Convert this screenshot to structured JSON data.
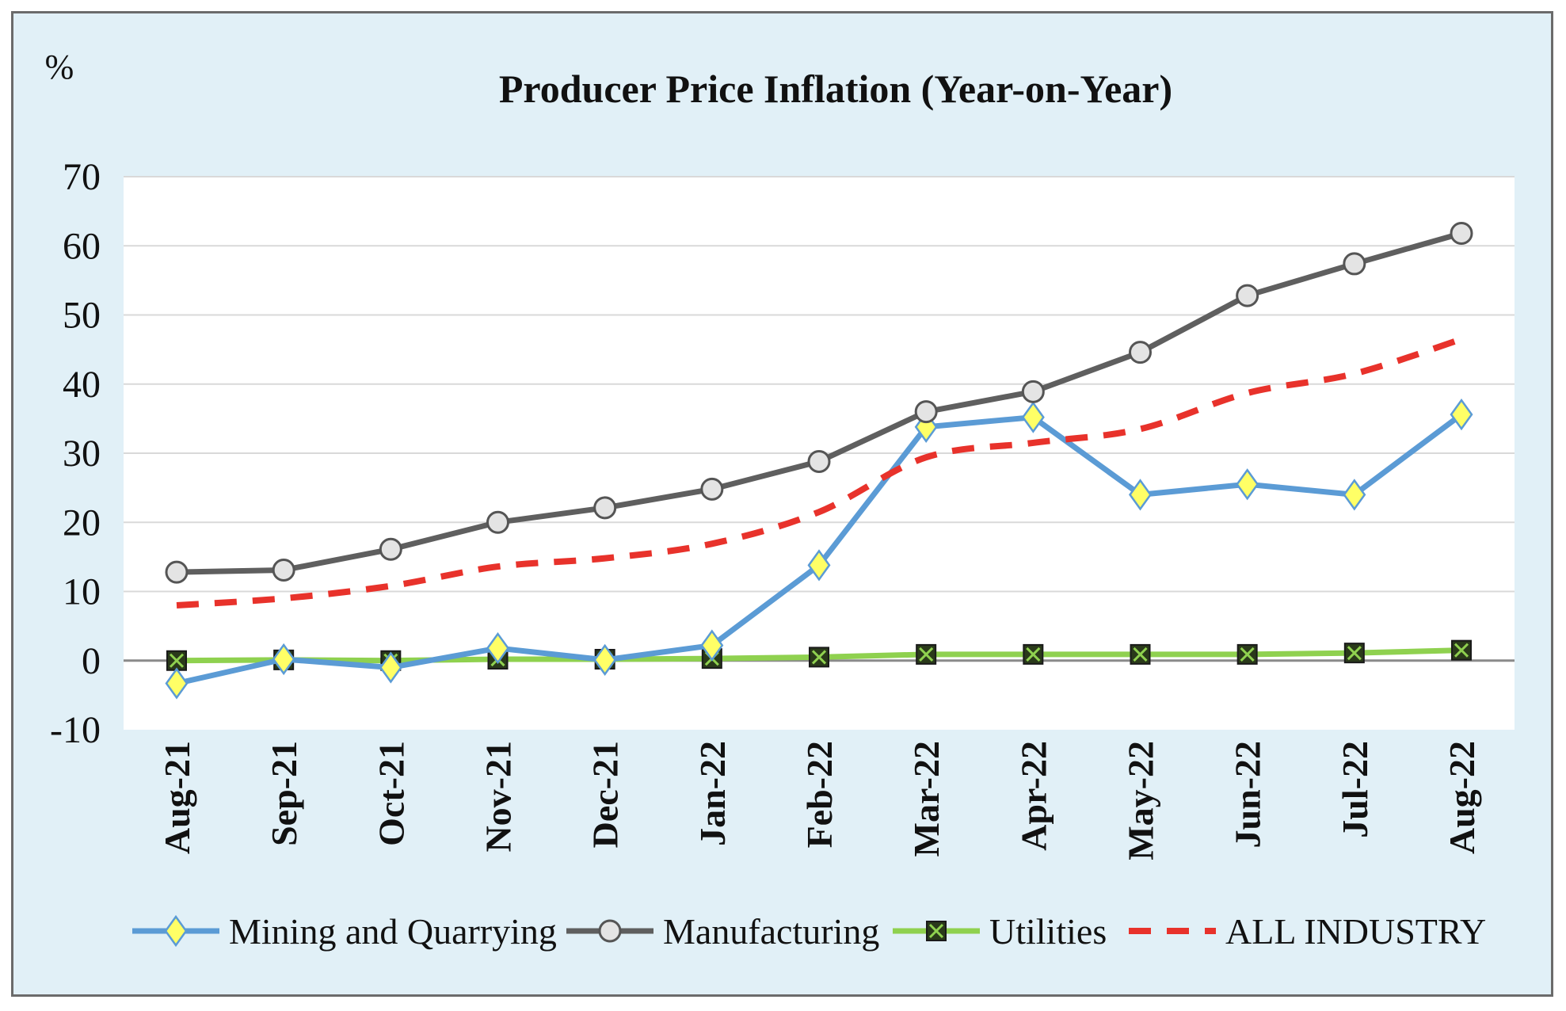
{
  "chart_data": {
    "type": "line",
    "title": "Producer Price Inflation (Year-on-Year)",
    "unit_label": "%",
    "categories": [
      "Aug-21",
      "Sep-21",
      "Oct-21",
      "Nov-21",
      "Dec-21",
      "Jan-22",
      "Feb-22",
      "Mar-22",
      "Apr-22",
      "May-22",
      "Jun-22",
      "Jul-22",
      "Aug-22"
    ],
    "ylim": [
      -10,
      70
    ],
    "yticks": [
      -10,
      0,
      10,
      20,
      30,
      40,
      50,
      60,
      70
    ],
    "grid": true,
    "legend_position": "bottom",
    "series": [
      {
        "name": "Mining and Quarrying",
        "color": "#5b9bd5",
        "marker": "diamond",
        "marker_color": "#ffff66",
        "dash": false,
        "values": [
          -3.3,
          0.2,
          -1.0,
          1.8,
          0.1,
          2.2,
          13.8,
          33.8,
          35.2,
          24.0,
          25.5,
          24.0,
          35.6
        ]
      },
      {
        "name": "Manufacturing",
        "color": "#5f5f5f",
        "marker": "circle",
        "marker_color": "#e4e4e4",
        "dash": false,
        "values": [
          12.8,
          13.1,
          16.1,
          20.0,
          22.1,
          24.8,
          28.8,
          36.0,
          38.9,
          44.6,
          52.8,
          57.4,
          61.8
        ]
      },
      {
        "name": "Utilities",
        "color": "#8fd14f",
        "marker": "square-x",
        "marker_color": "#2a3a1a",
        "dash": false,
        "values": [
          0.0,
          0.1,
          0.0,
          0.2,
          0.2,
          0.3,
          0.5,
          0.9,
          0.9,
          0.9,
          0.9,
          1.1,
          1.5
        ]
      },
      {
        "name": "ALL INDUSTRY",
        "color": "#e8322b",
        "marker": "none",
        "dash": true,
        "values": [
          8.0,
          9.0,
          10.8,
          13.6,
          14.8,
          16.9,
          21.5,
          29.4,
          31.5,
          33.5,
          38.7,
          41.5,
          46.5
        ]
      }
    ]
  }
}
